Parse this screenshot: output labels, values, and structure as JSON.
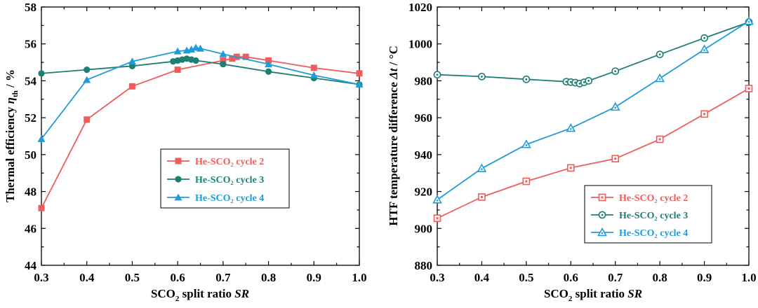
{
  "colors": {
    "cycle2": "#ee5c5c",
    "cycle3": "#1d7f74",
    "cycle4": "#1f9bd7"
  },
  "chart_data": [
    {
      "id": "left",
      "type": "line",
      "xlabel": {
        "prefix": "SCO",
        "sub": "2",
        "mid": " split ratio ",
        "italic": "SR"
      },
      "ylabel": {
        "prefix": "Thermal efficiency ",
        "italic": "η",
        "sub": "th",
        "suffix": " / %"
      },
      "xlim": [
        0.3,
        1.0
      ],
      "ylim": [
        44,
        58
      ],
      "xticks": [
        "0.3",
        "0.4",
        "0.5",
        "0.6",
        "0.7",
        "0.8",
        "0.9",
        "1.0"
      ],
      "yticks": [
        "44",
        "46",
        "48",
        "50",
        "52",
        "54",
        "56",
        "58"
      ],
      "legend_position": "center-right",
      "markers_filled": true,
      "series": [
        {
          "name": "He-SCO₂ cycle 2",
          "color_key": "cycle2",
          "marker": "square",
          "x": [
            0.3,
            0.4,
            0.5,
            0.6,
            0.7,
            0.72,
            0.73,
            0.75,
            0.8,
            0.9,
            1.0
          ],
          "y": [
            47.1,
            51.9,
            53.7,
            54.6,
            55.1,
            55.2,
            55.3,
            55.3,
            55.1,
            54.7,
            54.4
          ]
        },
        {
          "name": "He-SCO₂ cycle 3",
          "color_key": "cycle3",
          "marker": "circle",
          "x": [
            0.3,
            0.4,
            0.5,
            0.59,
            0.6,
            0.61,
            0.62,
            0.63,
            0.64,
            0.7,
            0.8,
            0.9,
            1.0
          ],
          "y": [
            54.4,
            54.6,
            54.8,
            55.05,
            55.1,
            55.15,
            55.2,
            55.15,
            55.1,
            54.9,
            54.5,
            54.15,
            53.8
          ]
        },
        {
          "name": "He-SCO₂ cycle 4",
          "color_key": "cycle4",
          "marker": "triangle",
          "x": [
            0.3,
            0.4,
            0.5,
            0.6,
            0.62,
            0.63,
            0.64,
            0.65,
            0.7,
            0.8,
            0.9,
            1.0
          ],
          "y": [
            50.85,
            54.05,
            55.05,
            55.6,
            55.65,
            55.7,
            55.8,
            55.75,
            55.45,
            54.9,
            54.3,
            53.8
          ]
        }
      ]
    },
    {
      "id": "right",
      "type": "line",
      "xlabel": {
        "prefix": "SCO",
        "sub": "2",
        "mid": " split ratio ",
        "italic": "SR"
      },
      "ylabel": {
        "prefix": "HTF temperature difference ",
        "italic": "Δt",
        "sub": "",
        "suffix": " / °C"
      },
      "xlim": [
        0.3,
        1.0
      ],
      "ylim": [
        880,
        1020
      ],
      "xticks": [
        "0.3",
        "0.4",
        "0.5",
        "0.6",
        "0.7",
        "0.8",
        "0.9",
        "1.0"
      ],
      "yticks": [
        "880",
        "900",
        "920",
        "940",
        "960",
        "980",
        "1000",
        "1020"
      ],
      "legend_position": "bottom-right",
      "markers_filled": false,
      "series": [
        {
          "name": "He-SCO₂ cycle 2",
          "color_key": "cycle2",
          "marker": "square",
          "x": [
            0.3,
            0.4,
            0.5,
            0.6,
            0.7,
            0.8,
            0.9,
            1.0
          ],
          "y": [
            905.5,
            917.0,
            925.5,
            932.8,
            937.8,
            948.3,
            962.0,
            975.8
          ]
        },
        {
          "name": "He-SCO₂ cycle 3",
          "color_key": "cycle3",
          "marker": "circle",
          "x": [
            0.3,
            0.4,
            0.5,
            0.59,
            0.6,
            0.61,
            0.62,
            0.63,
            0.64,
            0.7,
            0.8,
            0.9,
            1.0
          ],
          "y": [
            983.3,
            982.3,
            980.8,
            979.5,
            979.3,
            979.0,
            978.5,
            979.2,
            980.0,
            985.2,
            994.3,
            1003.2,
            1011.8
          ]
        },
        {
          "name": "He-SCO₂ cycle 4",
          "color_key": "cycle4",
          "marker": "triangle",
          "x": [
            0.3,
            0.4,
            0.5,
            0.6,
            0.7,
            0.8,
            0.9,
            1.0
          ],
          "y": [
            915.5,
            932.5,
            945.5,
            954.3,
            965.8,
            981.3,
            997.0,
            1012.3
          ]
        }
      ]
    }
  ]
}
